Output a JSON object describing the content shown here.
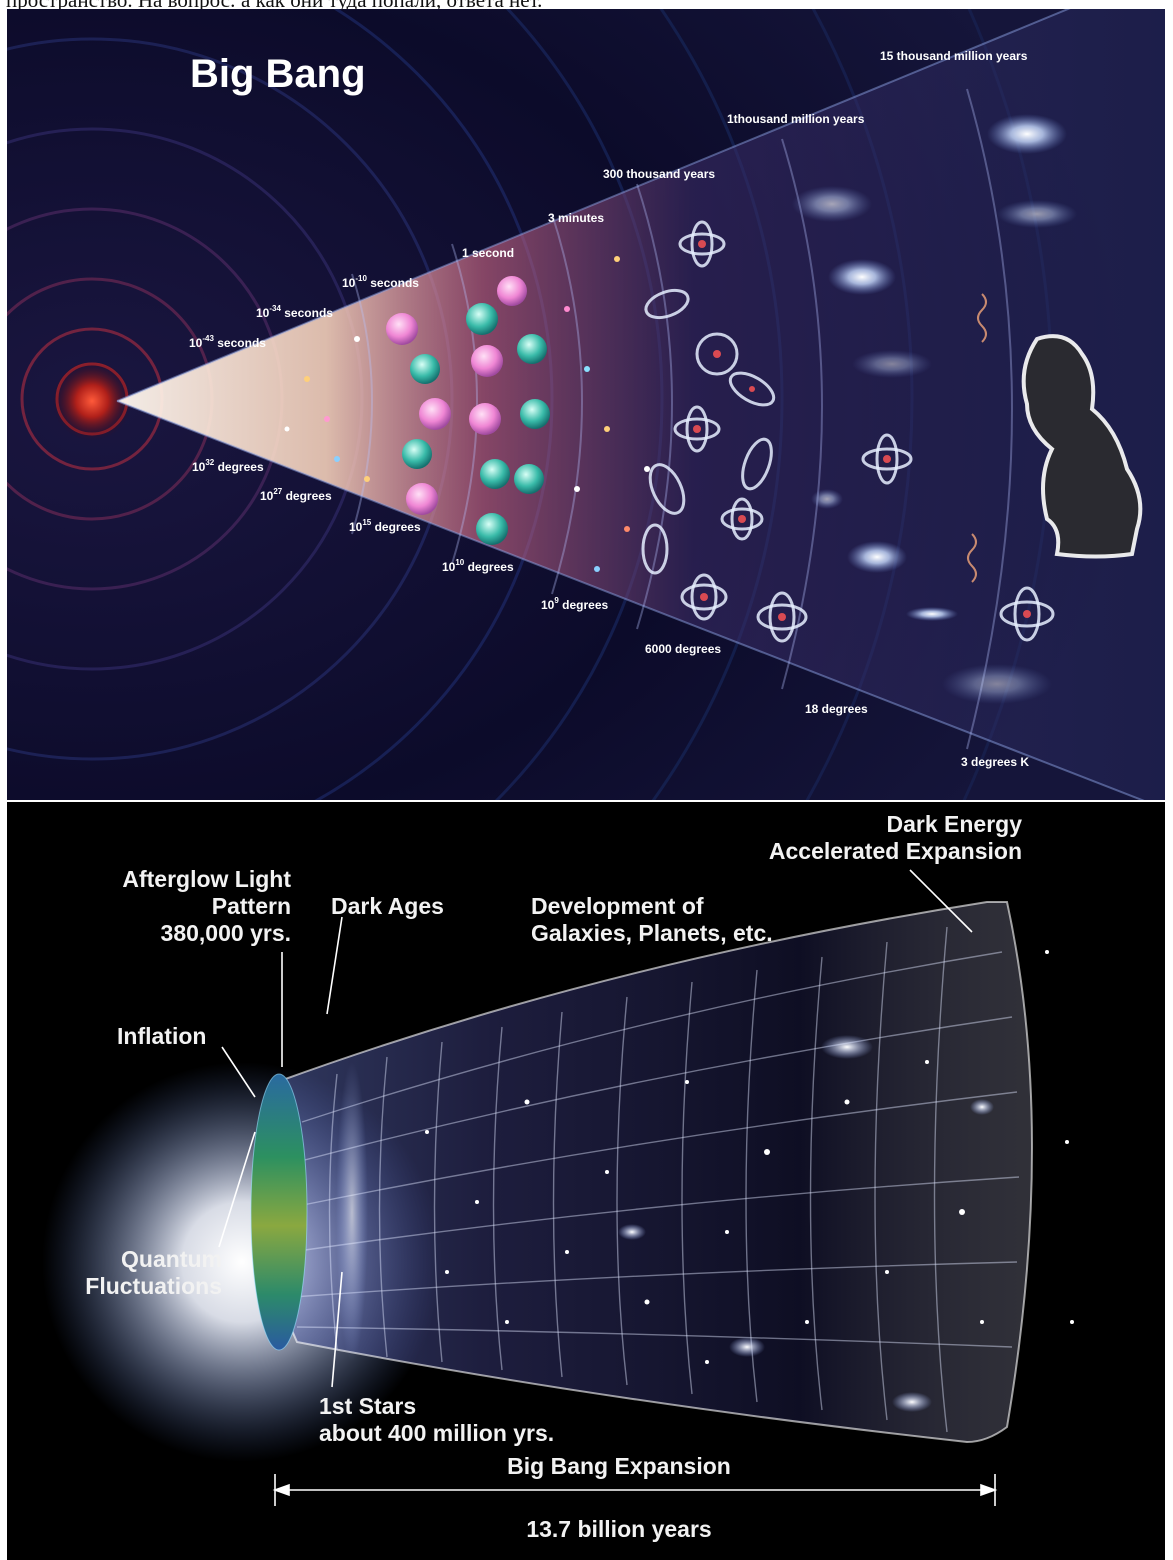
{
  "caption": "пространство. На вопрос: а как они туда попали, ответа нет.",
  "top_panel": {
    "title": "Big Bang",
    "time_labels": [
      {
        "base": "10",
        "sup": "-43",
        "unit": " seconds"
      },
      {
        "base": "10",
        "sup": "-34",
        "unit": " seconds"
      },
      {
        "base": "10",
        "sup": "-10",
        "unit": " seconds"
      },
      {
        "base": "1 second",
        "sup": "",
        "unit": ""
      },
      {
        "base": "3 minutes",
        "sup": "",
        "unit": ""
      },
      {
        "base": "300 thousand years",
        "sup": "",
        "unit": ""
      },
      {
        "base": "1thousand million years",
        "sup": "",
        "unit": ""
      },
      {
        "base": "15 thousand million years",
        "sup": "",
        "unit": ""
      }
    ],
    "temp_labels": [
      {
        "base": "10",
        "sup": "32",
        "unit": " degrees"
      },
      {
        "base": "10",
        "sup": "27",
        "unit": " degrees"
      },
      {
        "base": "10",
        "sup": "15",
        "unit": " degrees"
      },
      {
        "base": "10",
        "sup": "10",
        "unit": " degrees"
      },
      {
        "base": "10",
        "sup": "9",
        "unit": " degrees"
      },
      {
        "base": "6000 degrees",
        "sup": "",
        "unit": ""
      },
      {
        "base": "18 degrees",
        "sup": "",
        "unit": ""
      },
      {
        "base": "3 degrees K",
        "sup": "",
        "unit": ""
      }
    ]
  },
  "bottom_panel": {
    "labels": {
      "dark_energy": [
        "Dark Energy",
        "Accelerated Expansion"
      ],
      "afterglow": [
        "Afterglow Light",
        "Pattern",
        "380,000 yrs."
      ],
      "dark_ages": "Dark Ages",
      "development": [
        "Development of",
        "Galaxies, Planets, etc."
      ],
      "inflation": "Inflation",
      "quantum": [
        "Quantum",
        "Fluctuations"
      ],
      "first_stars": [
        "1st Stars",
        "about 400 million yrs."
      ],
      "expansion": "Big Bang Expansion",
      "duration": "13.7 billion years"
    }
  },
  "colors": {
    "top_background": "#0b0a25",
    "bottom_background": "#000000",
    "label": "#ffffff",
    "pink_particle": "#f28ad8",
    "teal_particle": "#2fb7a6",
    "cmb_green": "#2a8a5a"
  }
}
